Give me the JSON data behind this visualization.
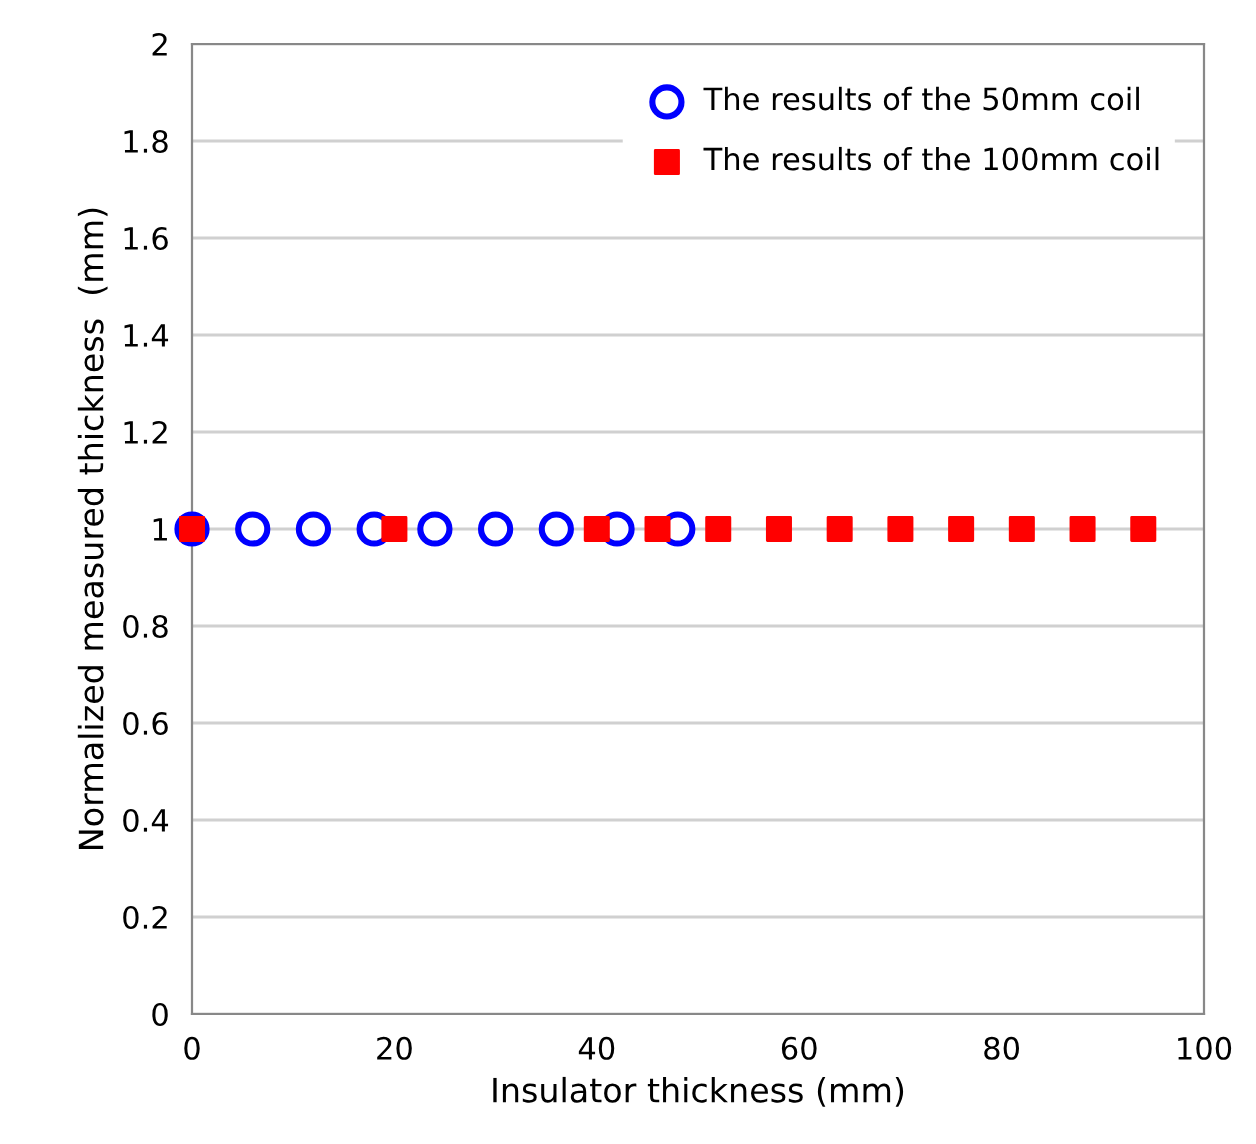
{
  "chart_data": {
    "type": "scatter",
    "xlabel": "Insulator thickness (mm)",
    "ylabel": "Normalized measured thickness  (mm)",
    "series": [
      {
        "name": "The results of the 50mm coil",
        "color": "#0000ff",
        "marker": "circle",
        "x": [
          0,
          6,
          12,
          18,
          24,
          30,
          36,
          42,
          48
        ],
        "values": [
          1,
          1,
          1,
          1,
          1,
          1,
          1,
          1,
          1
        ]
      },
      {
        "name": "The results of the 100mm coil",
        "color": "#ff0000",
        "marker": "square",
        "x": [
          0,
          20,
          40,
          46,
          52,
          58,
          64,
          70,
          76,
          82,
          88,
          94
        ],
        "values": [
          1,
          1,
          1,
          1,
          1,
          1,
          1,
          1,
          1,
          1,
          1,
          1
        ]
      }
    ],
    "xlim": [
      0,
      100
    ],
    "xticks": [
      0,
      20,
      40,
      60,
      80,
      100
    ],
    "ylim": [
      0,
      2
    ],
    "yticks": [
      0,
      0.2,
      0.4,
      0.6,
      0.8,
      1,
      1.2,
      1.4,
      1.6,
      1.8,
      2
    ],
    "grid": "y",
    "legend": "top right"
  }
}
